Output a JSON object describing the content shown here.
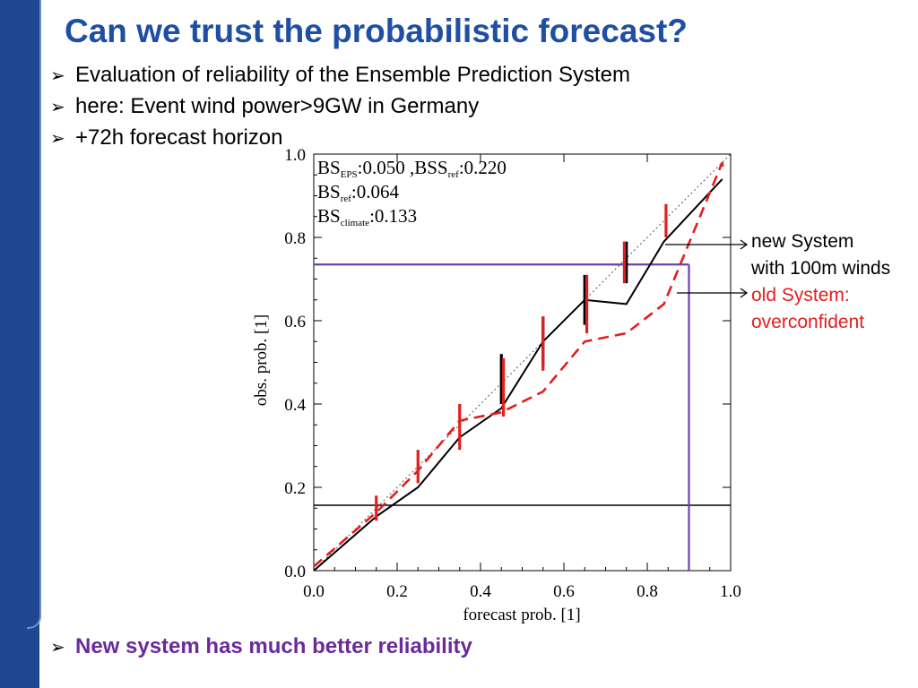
{
  "slide": {
    "title": "Can we trust the probabilistic forecast?",
    "bullets": [
      "Evaluation of reliability of the Ensemble Prediction System",
      "here: Event wind power>9GW in Germany",
      "+72h forecast horizon"
    ],
    "conclusion": "New system has much better reliability",
    "bullet_icon": "arrowhead-bullet-icon"
  },
  "callouts": {
    "new_line1": "new System",
    "new_line2": "with 100m winds",
    "old_line1": "old System:",
    "old_line2": "overconfident"
  },
  "chart_data": {
    "type": "line",
    "xlabel": "forecast prob. [1]",
    "ylabel": "obs. prob. [1]",
    "xlim": [
      0,
      1
    ],
    "ylim": [
      0,
      1
    ],
    "x_ticks": [
      "0.0",
      "0.2",
      "0.4",
      "0.6",
      "0.8",
      "1.0"
    ],
    "y_ticks": [
      "0.0",
      "0.2",
      "0.4",
      "0.6",
      "0.8",
      "1.0"
    ],
    "scores": [
      {
        "base": "BS",
        "sub": "EPS",
        "value": ":0.050 ,"
      },
      {
        "base": "BSS",
        "sub": "ref",
        "value": ":0.220"
      },
      {
        "base": "BS",
        "sub": "ref",
        "value": ":0.064"
      },
      {
        "base": "BS",
        "sub": "climate",
        "value": ":0.133"
      }
    ],
    "diagonal": [
      [
        0,
        0
      ],
      [
        1,
        1
      ]
    ],
    "climatology_y": 0.157,
    "purple_x": 0.9,
    "purple_y": 0.735,
    "series": [
      {
        "color": "#000000",
        "style": "solid",
        "x": [
          0.0,
          0.15,
          0.25,
          0.35,
          0.45,
          0.55,
          0.65,
          0.75,
          0.84,
          0.98
        ],
        "y": [
          0.0,
          0.13,
          0.2,
          0.32,
          0.39,
          0.55,
          0.65,
          0.64,
          0.79,
          0.94
        ]
      },
      {
        "color": "#e21e1e",
        "style": "dashed",
        "x": [
          0.0,
          0.15,
          0.25,
          0.35,
          0.45,
          0.55,
          0.65,
          0.75,
          0.84,
          0.98
        ],
        "y": [
          0.01,
          0.14,
          0.24,
          0.36,
          0.38,
          0.43,
          0.55,
          0.57,
          0.64,
          0.98
        ]
      }
    ],
    "error_bars": [
      {
        "color": "#000000",
        "x": 0.45,
        "low": 0.4,
        "high": 0.52
      },
      {
        "color": "#000000",
        "x": 0.55,
        "low": 0.49,
        "high": 0.61
      },
      {
        "color": "#000000",
        "x": 0.65,
        "low": 0.59,
        "high": 0.71
      },
      {
        "color": "#000000",
        "x": 0.75,
        "low": 0.69,
        "high": 0.79
      },
      {
        "color": "#e21e1e",
        "x": 0.15,
        "low": 0.12,
        "high": 0.18
      },
      {
        "color": "#e21e1e",
        "x": 0.25,
        "low": 0.21,
        "high": 0.29
      },
      {
        "color": "#e21e1e",
        "x": 0.35,
        "low": 0.29,
        "high": 0.4
      },
      {
        "color": "#e21e1e",
        "x": 0.455,
        "low": 0.37,
        "high": 0.51
      },
      {
        "color": "#e21e1e",
        "x": 0.55,
        "low": 0.48,
        "high": 0.61
      },
      {
        "color": "#e21e1e",
        "x": 0.655,
        "low": 0.57,
        "high": 0.71
      },
      {
        "color": "#e21e1e",
        "x": 0.745,
        "low": 0.69,
        "high": 0.79
      },
      {
        "color": "#e21e1e",
        "x": 0.845,
        "low": 0.8,
        "high": 0.88
      },
      {
        "color": "#e21e1e",
        "x": 0.98,
        "low": 0.97,
        "high": 0.98
      }
    ],
    "colors": {
      "purple": "#6f3fa8",
      "red": "#e21e1e",
      "black": "#000000"
    }
  }
}
